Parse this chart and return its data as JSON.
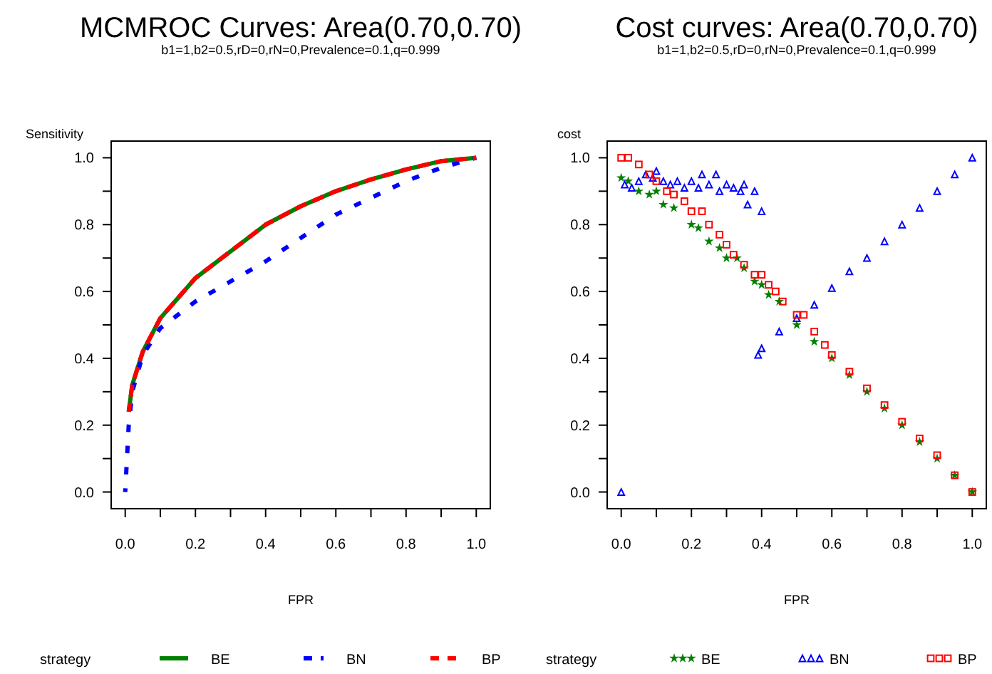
{
  "chart_data": [
    {
      "type": "line",
      "title": "MCMROC Curves: Area(0.70,0.70)",
      "subtitle": "b1=1,b2=0.5,rD=0,rN=0,Prevalence=0.1,q=0.999",
      "xlabel": "FPR",
      "ylabel": "Sensitivity",
      "legend_title": "strategy",
      "legend": "bottom",
      "grid": false,
      "xlim": [
        -0.04,
        1.04
      ],
      "ylim": [
        -0.05,
        1.05
      ],
      "xticks": [
        {
          "value": 0,
          "label": "0.0"
        },
        {
          "value": 0.1,
          "label": null
        },
        0.2,
        {
          "value": 0.3,
          "label": null
        },
        0.4,
        {
          "value": 0.5,
          "label": null
        },
        0.6,
        {
          "value": 0.7,
          "label": null
        },
        0.8,
        {
          "value": 0.9,
          "label": null
        },
        {
          "value": 1,
          "label": "1.0"
        }
      ],
      "yticks": [
        {
          "value": 0,
          "label": "0.0"
        },
        {
          "value": 0.1,
          "label": null
        },
        0.2,
        {
          "value": 0.3,
          "label": null
        },
        0.4,
        {
          "value": 0.5,
          "label": null
        },
        0.6,
        {
          "value": 0.7,
          "label": null
        },
        0.8,
        {
          "value": 0.9,
          "label": null
        },
        {
          "value": 1,
          "label": "1.0"
        }
      ],
      "series": [
        {
          "name": "BE",
          "color": "#008000",
          "line_style": "solid",
          "x": [
            0.01,
            0.02,
            0.05,
            0.1,
            0.15,
            0.2,
            0.3,
            0.4,
            0.5,
            0.6,
            0.7,
            0.8,
            0.9,
            1.0
          ],
          "values": [
            0.24,
            0.32,
            0.42,
            0.52,
            0.58,
            0.64,
            0.72,
            0.8,
            0.855,
            0.9,
            0.935,
            0.965,
            0.99,
            1.0
          ]
        },
        {
          "name": "BN",
          "color": "#0000ff",
          "line_style": "dashed",
          "x": [
            0.0,
            0.01,
            0.02,
            0.05,
            0.1,
            0.2,
            0.3,
            0.4,
            0.5,
            0.6,
            0.7,
            0.8,
            0.9,
            1.0
          ],
          "values": [
            0.0,
            0.2,
            0.3,
            0.41,
            0.49,
            0.57,
            0.63,
            0.69,
            0.76,
            0.83,
            0.88,
            0.93,
            0.97,
            1.0
          ]
        },
        {
          "name": "BP",
          "color": "#ff0000",
          "line_style": "dashed",
          "x": [
            0.01,
            0.02,
            0.05,
            0.1,
            0.15,
            0.2,
            0.3,
            0.4,
            0.5,
            0.6,
            0.7,
            0.8,
            0.9,
            1.0
          ],
          "values": [
            0.24,
            0.32,
            0.42,
            0.52,
            0.58,
            0.64,
            0.72,
            0.8,
            0.855,
            0.9,
            0.935,
            0.965,
            0.99,
            1.0
          ]
        }
      ]
    },
    {
      "type": "scatter",
      "title": "Cost curves: Area(0.70,0.70)",
      "subtitle": "b1=1,b2=0.5,rD=0,rN=0,Prevalence=0.1,q=0.999",
      "xlabel": "FPR",
      "ylabel": "cost",
      "legend_title": "strategy",
      "legend": "bottom",
      "grid": false,
      "xlim": [
        -0.04,
        1.04
      ],
      "ylim": [
        -0.05,
        1.05
      ],
      "xticks": [
        {
          "value": 0,
          "label": "0.0"
        },
        {
          "value": 0.1,
          "label": null
        },
        0.2,
        {
          "value": 0.3,
          "label": null
        },
        0.4,
        {
          "value": 0.5,
          "label": null
        },
        0.6,
        {
          "value": 0.7,
          "label": null
        },
        0.8,
        {
          "value": 0.9,
          "label": null
        },
        {
          "value": 1,
          "label": "1.0"
        }
      ],
      "yticks": [
        {
          "value": 0,
          "label": "0.0"
        },
        {
          "value": 0.1,
          "label": null
        },
        0.2,
        {
          "value": 0.3,
          "label": null
        },
        0.4,
        {
          "value": 0.5,
          "label": null
        },
        0.6,
        {
          "value": 0.7,
          "label": null
        },
        0.8,
        {
          "value": 0.9,
          "label": null
        },
        {
          "value": 1,
          "label": "1.0"
        }
      ],
      "series": [
        {
          "name": "BE",
          "color": "#008000",
          "marker": "star",
          "x": [
            0,
            0.02,
            0.05,
            0.08,
            0.1,
            0.12,
            0.15,
            0.2,
            0.22,
            0.25,
            0.28,
            0.3,
            0.33,
            0.35,
            0.38,
            0.4,
            0.42,
            0.45,
            0.5,
            0.55,
            0.6,
            0.65,
            0.7,
            0.75,
            0.8,
            0.85,
            0.9,
            0.95,
            1.0
          ],
          "values": [
            0.94,
            0.93,
            0.9,
            0.89,
            0.9,
            0.86,
            0.85,
            0.8,
            0.79,
            0.75,
            0.73,
            0.7,
            0.7,
            0.67,
            0.63,
            0.62,
            0.59,
            0.57,
            0.5,
            0.45,
            0.4,
            0.35,
            0.3,
            0.25,
            0.2,
            0.15,
            0.1,
            0.05,
            0.0
          ]
        },
        {
          "name": "BN",
          "color": "#0000ff",
          "marker": "triangle",
          "x": [
            0,
            0.01,
            0.03,
            0.05,
            0.07,
            0.09,
            0.1,
            0.12,
            0.14,
            0.16,
            0.18,
            0.2,
            0.22,
            0.23,
            0.25,
            0.27,
            0.28,
            0.3,
            0.32,
            0.34,
            0.35,
            0.36,
            0.38,
            0.4,
            0.39,
            0.4,
            0.45,
            0.5,
            0.55,
            0.6,
            0.65,
            0.7,
            0.75,
            0.8,
            0.85,
            0.9,
            0.95,
            1.0
          ],
          "values": [
            0.0,
            0.92,
            0.91,
            0.93,
            0.95,
            0.94,
            0.96,
            0.93,
            0.92,
            0.93,
            0.91,
            0.93,
            0.91,
            0.95,
            0.92,
            0.95,
            0.9,
            0.92,
            0.91,
            0.9,
            0.92,
            0.86,
            0.9,
            0.84,
            0.41,
            0.43,
            0.48,
            0.52,
            0.56,
            0.61,
            0.66,
            0.7,
            0.75,
            0.8,
            0.85,
            0.9,
            0.95,
            1.0
          ]
        },
        {
          "name": "BP",
          "color": "#ff0000",
          "marker": "square",
          "x": [
            0,
            0.02,
            0.05,
            0.08,
            0.1,
            0.13,
            0.15,
            0.18,
            0.2,
            0.23,
            0.25,
            0.28,
            0.3,
            0.32,
            0.35,
            0.38,
            0.4,
            0.42,
            0.44,
            0.46,
            0.5,
            0.52,
            0.55,
            0.58,
            0.6,
            0.65,
            0.7,
            0.75,
            0.8,
            0.85,
            0.9,
            0.95,
            1.0
          ],
          "values": [
            1.0,
            1.0,
            0.98,
            0.95,
            0.93,
            0.9,
            0.89,
            0.87,
            0.84,
            0.84,
            0.8,
            0.77,
            0.74,
            0.71,
            0.68,
            0.65,
            0.65,
            0.62,
            0.6,
            0.57,
            0.53,
            0.53,
            0.48,
            0.44,
            0.41,
            0.36,
            0.31,
            0.26,
            0.21,
            0.16,
            0.11,
            0.05,
            0.0
          ]
        }
      ]
    }
  ]
}
